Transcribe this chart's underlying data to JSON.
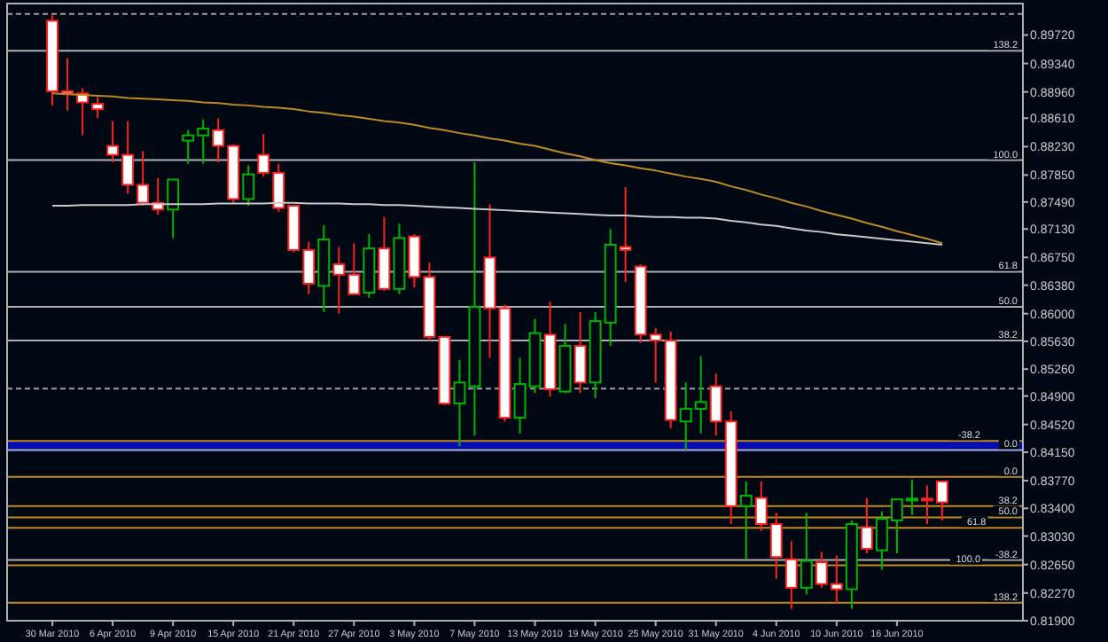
{
  "chart_data": {
    "type": "candlestick",
    "categories": [
      "30 Mar 2010",
      null,
      null,
      null,
      "6 Apr 2010",
      null,
      null,
      null,
      "9 Apr 2010",
      null,
      null,
      null,
      "15 Apr 2010",
      null,
      null,
      null,
      "21 Apr 2010",
      null,
      null,
      null,
      "27 Apr 2010",
      null,
      null,
      null,
      "3 May 2010",
      null,
      null,
      null,
      "7 May 2010",
      null,
      null,
      null,
      "13 May 2010",
      null,
      null,
      null,
      "19 May 2010",
      null,
      null,
      null,
      "25 May 2010",
      null,
      null,
      null,
      "31 May 2010",
      null,
      null,
      null,
      "4 Jun 2010",
      null,
      null,
      null,
      "10 Jun 2010",
      null,
      null,
      null,
      "16 Jun 2010",
      null,
      null,
      null
    ],
    "ohlc": [
      [
        0.8991,
        0.9,
        0.8878,
        0.8897
      ],
      [
        0.8897,
        0.8941,
        0.8871,
        0.8894
      ],
      [
        0.8894,
        0.8901,
        0.8838,
        0.8882
      ],
      [
        0.888,
        0.8889,
        0.8861,
        0.8873
      ],
      [
        0.8824,
        0.8857,
        0.8802,
        0.8812
      ],
      [
        0.8812,
        0.8857,
        0.876,
        0.8772
      ],
      [
        0.8772,
        0.8817,
        0.8744,
        0.8748
      ],
      [
        0.8748,
        0.8781,
        0.8732,
        0.8739
      ],
      [
        0.8739,
        0.8779,
        0.8701,
        0.8779
      ],
      [
        0.8831,
        0.8845,
        0.88,
        0.8838
      ],
      [
        0.8838,
        0.8859,
        0.88,
        0.8847
      ],
      [
        0.8845,
        0.8861,
        0.8802,
        0.8824
      ],
      [
        0.8824,
        0.8826,
        0.8748,
        0.8753
      ],
      [
        0.8753,
        0.8798,
        0.8744,
        0.8786
      ],
      [
        0.8812,
        0.884,
        0.8783,
        0.8788
      ],
      [
        0.8788,
        0.88,
        0.8736,
        0.8741
      ],
      [
        0.8744,
        0.8744,
        0.8682,
        0.8685
      ],
      [
        0.8685,
        0.8696,
        0.8626,
        0.864
      ],
      [
        0.8637,
        0.8718,
        0.8602,
        0.8699
      ],
      [
        0.8666,
        0.8689,
        0.86,
        0.8652
      ],
      [
        0.8652,
        0.8694,
        0.8626,
        0.8626
      ],
      [
        0.8628,
        0.8706,
        0.8621,
        0.8687
      ],
      [
        0.8687,
        0.8729,
        0.863,
        0.8633
      ],
      [
        0.8633,
        0.872,
        0.8626,
        0.8701
      ],
      [
        0.8703,
        0.8706,
        0.8635,
        0.8649
      ],
      [
        0.8649,
        0.8668,
        0.8564,
        0.8569
      ],
      [
        0.8569,
        0.8569,
        0.8478,
        0.848
      ],
      [
        0.848,
        0.8538,
        0.8423,
        0.8508
      ],
      [
        0.8503,
        0.8802,
        0.8437,
        0.8609
      ],
      [
        0.8675,
        0.8746,
        0.8541,
        0.8607
      ],
      [
        0.8607,
        0.8612,
        0.8456,
        0.8461
      ],
      [
        0.8461,
        0.8541,
        0.844,
        0.8506
      ],
      [
        0.8503,
        0.8593,
        0.8494,
        0.8574
      ],
      [
        0.8572,
        0.8616,
        0.8489,
        0.8499
      ],
      [
        0.8496,
        0.8586,
        0.8494,
        0.8557
      ],
      [
        0.8557,
        0.8602,
        0.8494,
        0.8508
      ],
      [
        0.8508,
        0.8602,
        0.8487,
        0.859
      ],
      [
        0.8588,
        0.8713,
        0.8557,
        0.8692
      ],
      [
        0.8689,
        0.8769,
        0.8642,
        0.8685
      ],
      [
        0.8663,
        0.8666,
        0.8561,
        0.8572
      ],
      [
        0.8572,
        0.8581,
        0.8508,
        0.8564
      ],
      [
        0.8564,
        0.8576,
        0.8447,
        0.8458
      ],
      [
        0.8456,
        0.8508,
        0.8418,
        0.8473
      ],
      [
        0.8473,
        0.8543,
        0.844,
        0.8482
      ],
      [
        0.8503,
        0.852,
        0.8437,
        0.8456
      ],
      [
        0.8456,
        0.847,
        0.8319,
        0.8343
      ],
      [
        0.8343,
        0.8376,
        0.8272,
        0.8357
      ],
      [
        0.8354,
        0.8376,
        0.831,
        0.8319
      ],
      [
        0.8319,
        0.8334,
        0.8246,
        0.8275
      ],
      [
        0.8272,
        0.8296,
        0.8206,
        0.8234
      ],
      [
        0.8234,
        0.8334,
        0.8225,
        0.827
      ],
      [
        0.8268,
        0.8282,
        0.8234,
        0.8239
      ],
      [
        0.8239,
        0.8277,
        0.8213,
        0.8232
      ],
      [
        0.8232,
        0.8324,
        0.8206,
        0.8319
      ],
      [
        0.8315,
        0.8354,
        0.828,
        0.8286
      ],
      [
        0.8284,
        0.8336,
        0.8258,
        0.8326
      ],
      [
        0.8324,
        0.8352,
        0.828,
        0.8352
      ],
      [
        0.8352,
        0.8378,
        0.8331,
        0.8353
      ],
      [
        0.8353,
        0.8371,
        0.8319,
        0.8352
      ],
      [
        0.8376,
        0.8376,
        0.8324,
        0.8348
      ]
    ],
    "colors": [
      "#ff2020",
      "#ff2020",
      "#ff2020",
      "#ff2020",
      "#ff2020",
      "#ff2020",
      "#ff2020",
      "#ff2020",
      "#00b400",
      "#00b400",
      "#00b400",
      "#ff2020",
      "#ff2020",
      "#00b400",
      "#ff2020",
      "#ff2020",
      "#ff2020",
      "#ff2020",
      "#00b400",
      "#ff2020",
      "#ff2020",
      "#00b400",
      "#ff2020",
      "#00b400",
      "#ff2020",
      "#ff2020",
      "#ff2020",
      "#00b400",
      "#00b400",
      "#ff2020",
      "#ff2020",
      "#00b400",
      "#00b400",
      "#ff2020",
      "#00b400",
      "#ff2020",
      "#00b400",
      "#00b400",
      "#ff2020",
      "#ff2020",
      "#ff2020",
      "#ff2020",
      "#00b400",
      "#00b400",
      "#ff2020",
      "#ff2020",
      "#00b400",
      "#ff2020",
      "#ff2020",
      "#ff2020",
      "#00b400",
      "#ff2020",
      "#ff2020",
      "#00b400",
      "#ff2020",
      "#00b400",
      "#00b400",
      "#00b400",
      "#ff2020",
      "#ff2020"
    ],
    "series": [
      {
        "type": "line",
        "color": "#c08a20",
        "values": [
          0.8894,
          0.8893,
          0.8892,
          0.8891,
          0.889,
          0.8888,
          0.8887,
          0.8886,
          0.8885,
          0.8884,
          0.8882,
          0.8881,
          0.8879,
          0.8878,
          0.8876,
          0.8875,
          0.8873,
          0.887,
          0.8868,
          0.8865,
          0.8863,
          0.886,
          0.8857,
          0.8855,
          0.8852,
          0.8848,
          0.8845,
          0.8841,
          0.8838,
          0.8834,
          0.8831,
          0.8827,
          0.8824,
          0.8819,
          0.8814,
          0.881,
          0.8805,
          0.8801,
          0.8798,
          0.8794,
          0.8791,
          0.8787,
          0.8783,
          0.878,
          0.8776,
          0.877,
          0.8765,
          0.8759,
          0.8754,
          0.8748,
          0.8743,
          0.8737,
          0.8732,
          0.8727,
          0.8721,
          0.8716,
          0.871,
          0.8705,
          0.87,
          0.8694
        ]
      },
      {
        "type": "line",
        "color": "#c8c8c8",
        "values": [
          0.8744,
          0.8744,
          0.8745,
          0.8745,
          0.8745,
          0.8745,
          0.8746,
          0.8746,
          0.8746,
          0.8746,
          0.8746,
          0.8747,
          0.8747,
          0.8747,
          0.8747,
          0.8748,
          0.8748,
          0.8747,
          0.8747,
          0.8747,
          0.8746,
          0.8746,
          0.8745,
          0.8745,
          0.8744,
          0.8743,
          0.8742,
          0.8741,
          0.874,
          0.8739,
          0.8738,
          0.8737,
          0.8736,
          0.8735,
          0.8734,
          0.8733,
          0.8732,
          0.8731,
          0.8731,
          0.873,
          0.8729,
          0.8729,
          0.8728,
          0.8728,
          0.8727,
          0.8724,
          0.8722,
          0.8719,
          0.8717,
          0.8714,
          0.8711,
          0.8709,
          0.8706,
          0.8704,
          0.8702,
          0.87,
          0.8698,
          0.8696,
          0.8694,
          0.8692
        ]
      }
    ],
    "ylim": [
      0.819,
      0.9014
    ],
    "yticks": [
      {
        "value": 0.819,
        "label": "0.81900"
      },
      {
        "value": 0.8227,
        "label": "0.82270"
      },
      {
        "value": 0.8265,
        "label": "0.82650"
      },
      {
        "value": 0.8303,
        "label": "0.83030"
      },
      {
        "value": 0.834,
        "label": "0.83400"
      },
      {
        "value": 0.8377,
        "label": "0.83770"
      },
      {
        "value": 0.8415,
        "label": "0.84150"
      },
      {
        "value": 0.8452,
        "label": "0.84520"
      },
      {
        "value": 0.849,
        "label": "0.84900"
      },
      {
        "value": 0.8526,
        "label": "0.85260"
      },
      {
        "value": 0.8563,
        "label": "0.85630"
      },
      {
        "value": 0.86,
        "label": "0.86000"
      },
      {
        "value": 0.8638,
        "label": "0.86380"
      },
      {
        "value": 0.8675,
        "label": "0.86750"
      },
      {
        "value": 0.8713,
        "label": "0.87130"
      },
      {
        "value": 0.8749,
        "label": "0.87490"
      },
      {
        "value": 0.8785,
        "label": "0.87850"
      },
      {
        "value": 0.8823,
        "label": "0.88230"
      },
      {
        "value": 0.8861,
        "label": "0.88610"
      },
      {
        "value": 0.8896,
        "label": "0.88960"
      },
      {
        "value": 0.8934,
        "label": "0.89340"
      },
      {
        "value": 0.8972,
        "label": "0.89720"
      }
    ],
    "bands": [
      {
        "axis": "y",
        "from": 0.8416,
        "to": 0.843,
        "color": "#0010c0"
      }
    ],
    "ref_lines": [
      {
        "axis": "y",
        "value": 0.9,
        "color": "#a0a0a0",
        "line_style": "dashed"
      },
      {
        "axis": "y",
        "value": 0.85,
        "color": "#a0a0a0",
        "line_style": "dashed"
      },
      {
        "axis": "y",
        "value": 0.8951,
        "color": "#b0b0b0"
      },
      {
        "axis": "y",
        "value": 0.8805,
        "color": "#b0b0b0"
      },
      {
        "axis": "y",
        "value": 0.8656,
        "color": "#b0b0b0"
      },
      {
        "axis": "y",
        "value": 0.8609,
        "color": "#b0b0b0"
      },
      {
        "axis": "y",
        "value": 0.8564,
        "color": "#b0b0b0"
      },
      {
        "axis": "y",
        "value": 0.8418,
        "color": "#b0b0b0"
      },
      {
        "axis": "y",
        "value": 0.8271,
        "color": "#b0b0b0"
      },
      {
        "axis": "y",
        "value": 0.843,
        "color": "#c08a20"
      },
      {
        "axis": "y",
        "value": 0.8382,
        "color": "#c08a20"
      },
      {
        "axis": "y",
        "value": 0.8343,
        "color": "#c08a20"
      },
      {
        "axis": "y",
        "value": 0.8328,
        "color": "#c08a20"
      },
      {
        "axis": "y",
        "value": 0.8314,
        "color": "#c08a20"
      },
      {
        "axis": "y",
        "value": 0.8264,
        "color": "#c08a20"
      },
      {
        "axis": "y",
        "value": 0.8214,
        "color": "#c08a20"
      }
    ],
    "annotations": [
      {
        "text": "138.2",
        "y": 0.8951
      },
      {
        "text": "100.0",
        "y": 0.8805
      },
      {
        "text": "61.8",
        "y": 0.8656
      },
      {
        "text": "50.0",
        "y": 0.8609
      },
      {
        "text": "38.2",
        "y": 0.8564
      },
      {
        "text": "0.0",
        "y": 0.8418
      },
      {
        "text": "-38.2",
        "y": 0.8271
      },
      {
        "text": "-38.2",
        "y": 0.843
      },
      {
        "text": "0.0",
        "y": 0.8382
      },
      {
        "text": "38.2",
        "y": 0.8343
      },
      {
        "text": "50.0",
        "y": 0.8328
      },
      {
        "text": "61.8",
        "y": 0.8314
      },
      {
        "text": "100.0",
        "y": 0.8264
      },
      {
        "text": "138.2",
        "y": 0.8214
      }
    ]
  }
}
